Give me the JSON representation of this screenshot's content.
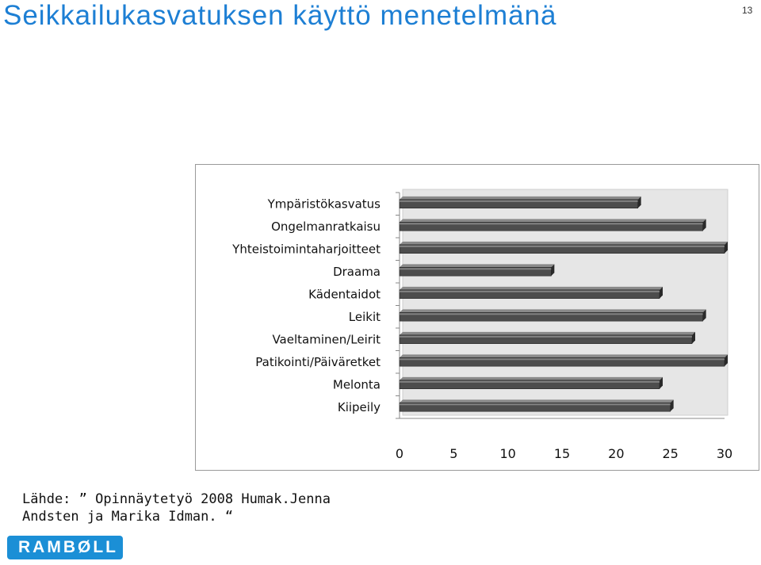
{
  "slide": {
    "title": "Seikkailukasvatuksen käyttö menetelmänä",
    "page_number": "13"
  },
  "chart_data": {
    "type": "bar",
    "orientation": "horizontal",
    "categories": [
      "Ympäristökasvatus",
      "Ongelmanratkaisu",
      "Yhteistoimintaharjoitteet",
      "Draama",
      "Kädentaidot",
      "Leikit",
      "Vaeltaminen/Leirit",
      "Patikointi/Päiväretket",
      "Melonta",
      "Kiipeily"
    ],
    "values": [
      22,
      28,
      30,
      14,
      24,
      28,
      27,
      30,
      24,
      25
    ],
    "xlim": [
      0,
      30
    ],
    "x_ticks": [
      "0",
      "5",
      "10",
      "15",
      "20",
      "25",
      "30"
    ],
    "title": "",
    "xlabel": "",
    "ylabel": "",
    "grid": false,
    "legend": "none",
    "bar_color": "#4d4d4d",
    "wall_color": "#e6e6e6"
  },
  "source": {
    "text": "Lähde: ” Opinnäytetyö 2008 Humak.Jenna Andsten ja Marika Idman. “"
  },
  "logo": {
    "text": "RAMBØLL",
    "color": "#1b8fd6"
  }
}
